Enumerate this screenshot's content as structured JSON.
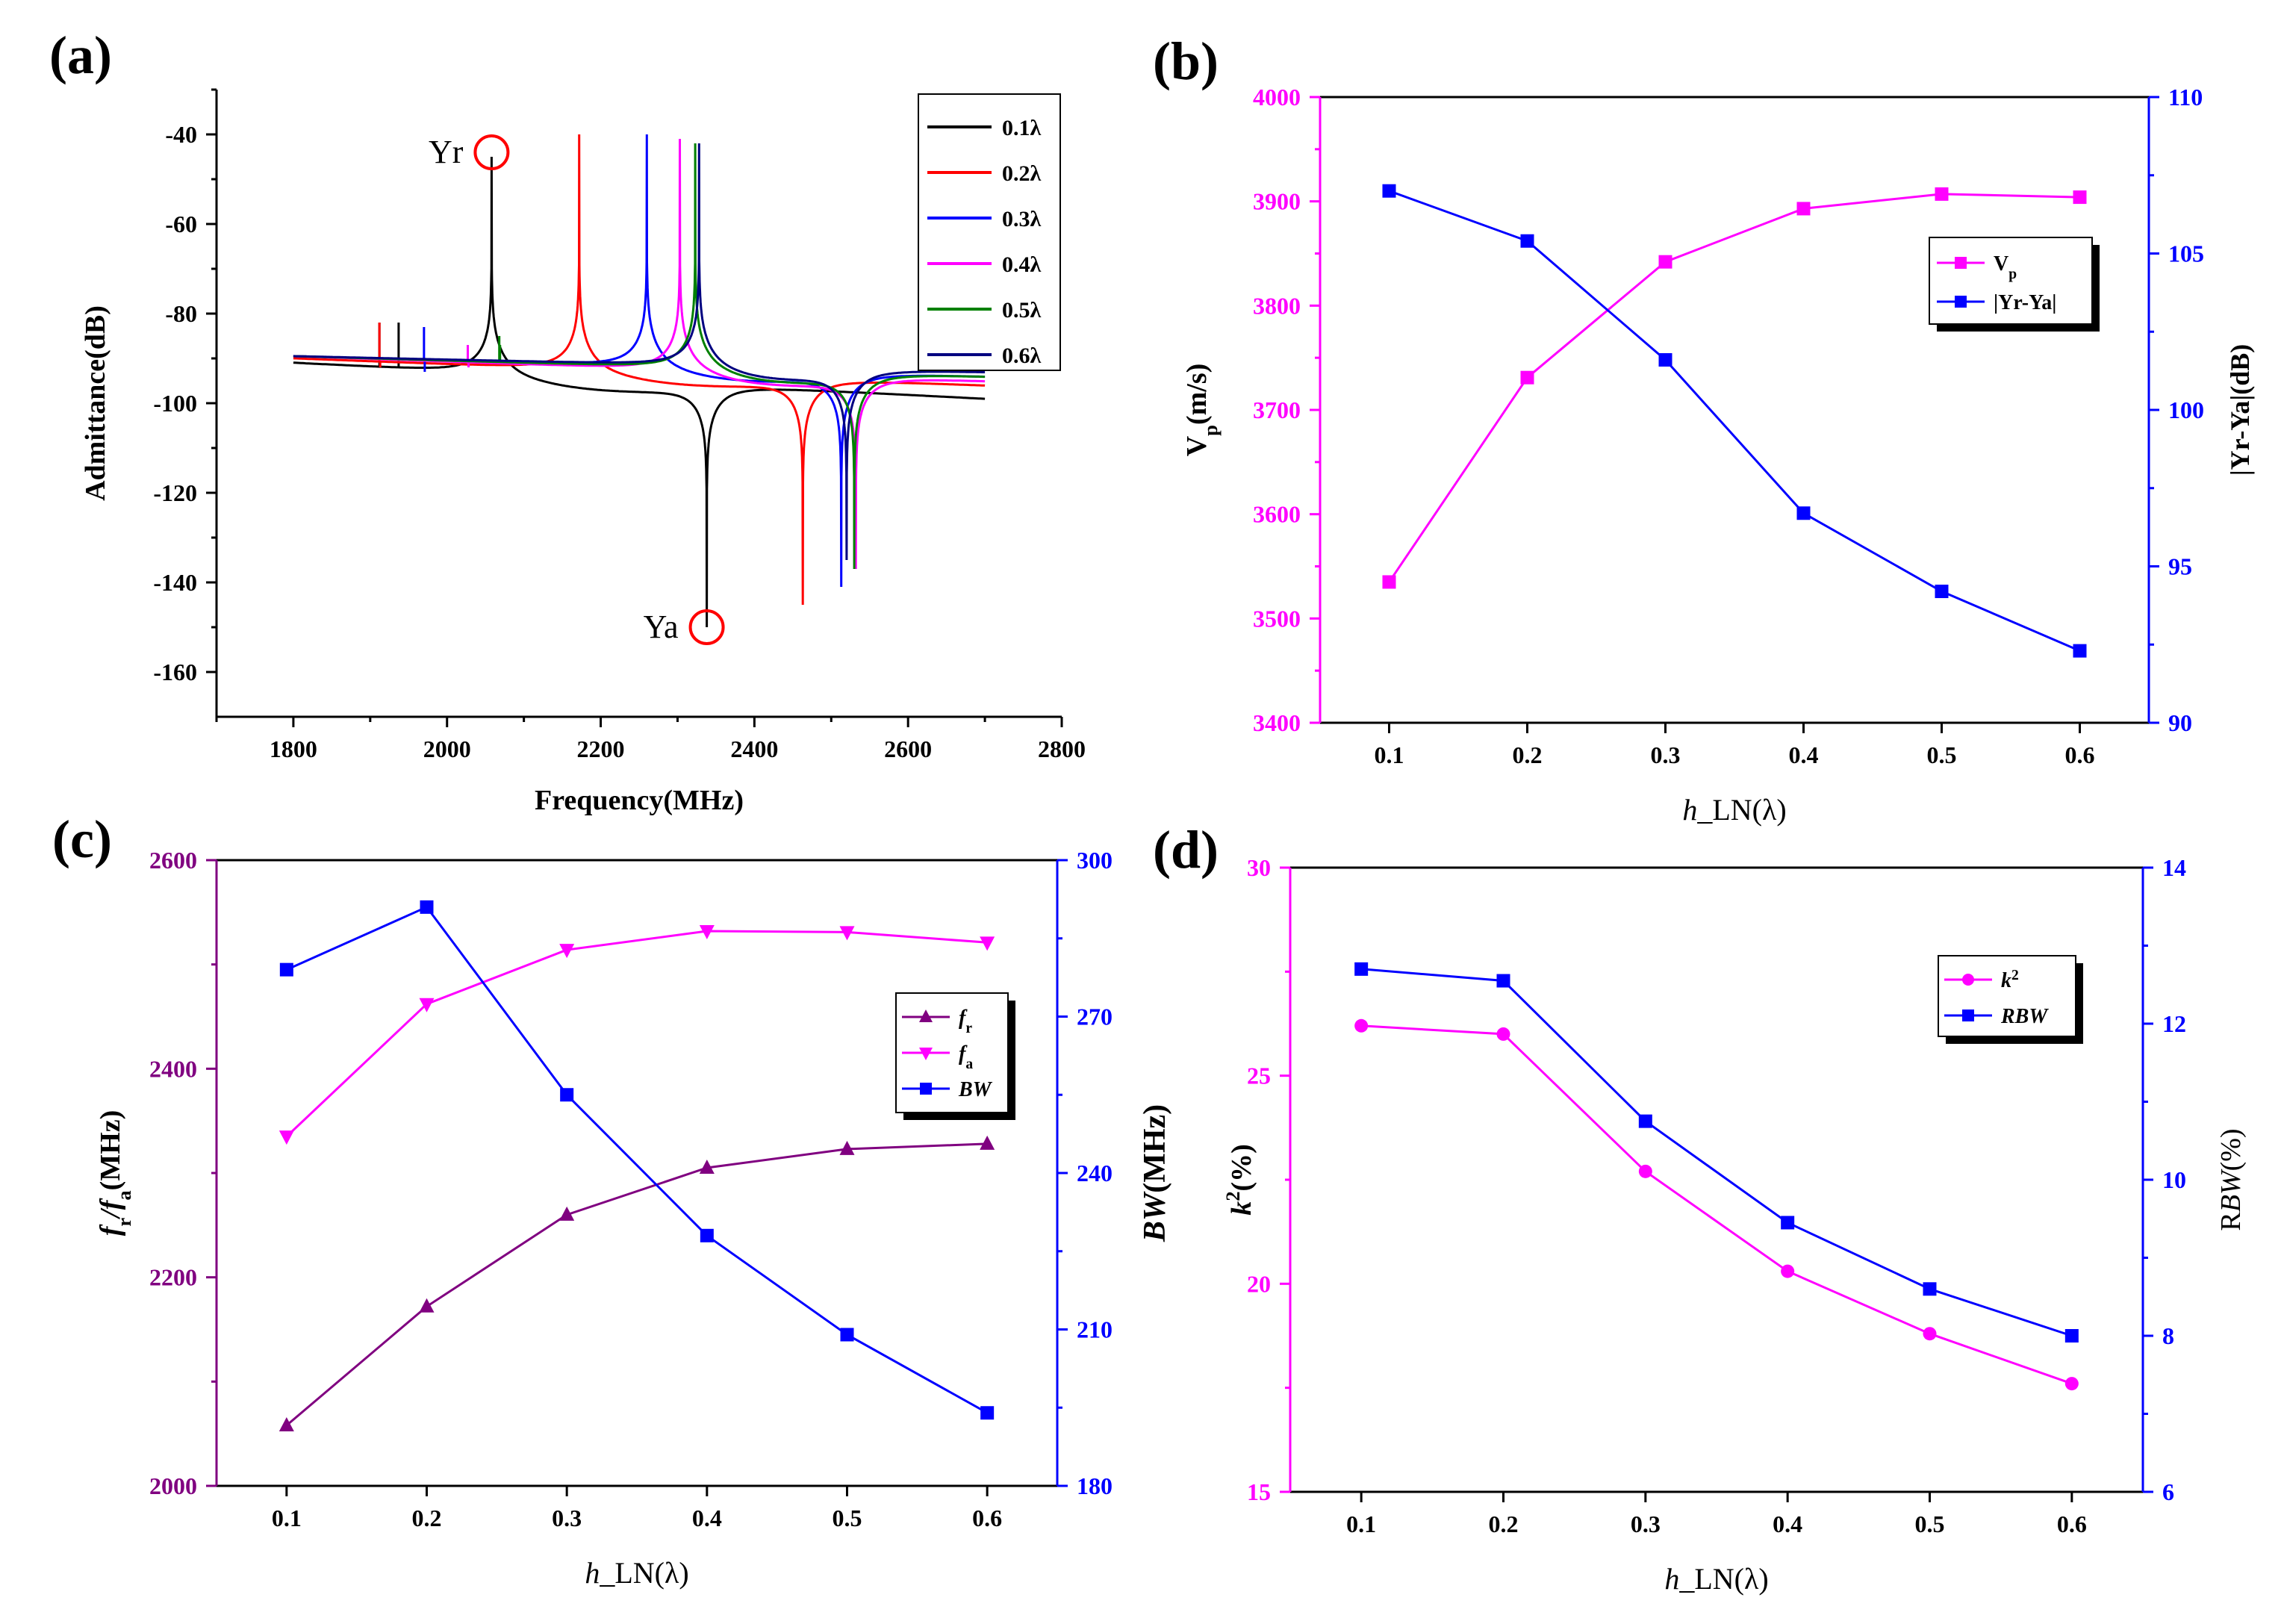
{
  "figure": {
    "panels": [
      "(a)",
      "(b)",
      "(c)",
      "(d)"
    ]
  },
  "chart_data": [
    {
      "panel": "(a)",
      "type": "line",
      "xlabel": "Frequency(MHz)",
      "ylabel": "Admittance(dB)",
      "xlim": [
        1700,
        2800
      ],
      "ylim": [
        -170,
        -30
      ],
      "xticks": [
        1800,
        2000,
        2200,
        2400,
        2600,
        2800
      ],
      "yticks": [
        -160,
        -140,
        -120,
        -100,
        -80,
        -60,
        -40
      ],
      "legend_position": "top-right",
      "annotations": [
        {
          "text": "Yr",
          "x": 2058,
          "y": -44
        },
        {
          "text": "Ya",
          "x": 2338,
          "y": -150
        }
      ],
      "series": [
        {
          "name": "0.1λ",
          "color": "#000000",
          "fr": 2058,
          "fa": 2338,
          "ymax": -45,
          "ymin": -150,
          "spurs": [
            [
              1912,
              -82
            ],
            [
              1937,
              -82
            ]
          ],
          "y_start": -91,
          "y_end": -99
        },
        {
          "name": "0.2λ",
          "color": "#ff0000",
          "fr": 2172,
          "fa": 2463,
          "ymax": -40,
          "ymin": -145,
          "spurs": [
            [
              1912,
              -82
            ],
            [
              1913,
              -92
            ]
          ],
          "y_start": -90,
          "y_end": -96
        },
        {
          "name": "0.3λ",
          "color": "#0000ff",
          "fr": 2260,
          "fa": 2513,
          "ymax": -40,
          "ymin": -141,
          "spurs": [
            [
              1970,
              -83
            ],
            [
              1971,
              -93
            ]
          ],
          "y_start": -89.5,
          "y_end": -94
        },
        {
          "name": "0.4λ",
          "color": "#ff00ff",
          "fr": 2303,
          "fa": 2532,
          "ymax": -41,
          "ymin": -137,
          "spurs": [
            [
              2027,
              -87
            ],
            [
              2028,
              -92
            ]
          ],
          "y_start": -89.5,
          "y_end": -95
        },
        {
          "name": "0.5λ",
          "color": "#008000",
          "fr": 2323,
          "fa": 2530,
          "ymax": -42,
          "ymin": -137,
          "spurs": [
            [
              2068,
              -85
            ],
            [
              2069,
              -87
            ]
          ],
          "y_start": -89.5,
          "y_end": -94
        },
        {
          "name": "0.6λ",
          "color": "#000080",
          "fr": 2328,
          "fa": 2520,
          "ymax": -42,
          "ymin": -135,
          "spurs": [],
          "y_start": -89.5,
          "y_end": -93
        }
      ]
    },
    {
      "panel": "(b)",
      "type": "line",
      "xlabel": "h_LN(λ)",
      "ylabel": "Vp(m/s)",
      "y2label": "|Yr-Ya|(dB)",
      "x": [
        0.1,
        0.2,
        0.3,
        0.4,
        0.5,
        0.6
      ],
      "xlim": [
        0.05,
        0.65
      ],
      "ylim": [
        3400,
        4000
      ],
      "y2lim": [
        90,
        110
      ],
      "xticks": [
        0.1,
        0.2,
        0.3,
        0.4,
        0.5,
        0.6
      ],
      "yticks": [
        3400,
        3500,
        3600,
        3700,
        3800,
        3900,
        4000
      ],
      "y2ticks": [
        90,
        95,
        100,
        105,
        110
      ],
      "legend_position": "upper-right",
      "series": [
        {
          "name": "Vp",
          "axis": "left",
          "color": "#ff00ff",
          "marker": "square",
          "values": [
            3535,
            3731,
            3842,
            3893,
            3907,
            3904
          ]
        },
        {
          "name": "|Yr-Ya|",
          "axis": "right",
          "color": "#0000ff",
          "marker": "square",
          "values": [
            107.0,
            105.4,
            101.6,
            96.7,
            94.2,
            92.3
          ]
        }
      ]
    },
    {
      "panel": "(c)",
      "type": "line",
      "xlabel": "h_LN(λ)",
      "ylabel": "fr/fa(MHz)",
      "y2label": "BW(MHz)",
      "x": [
        0.1,
        0.2,
        0.3,
        0.4,
        0.5,
        0.6
      ],
      "xlim": [
        0.05,
        0.65
      ],
      "ylim": [
        2000,
        2600
      ],
      "y2lim": [
        180,
        300
      ],
      "xticks": [
        0.1,
        0.2,
        0.3,
        0.4,
        0.5,
        0.6
      ],
      "yticks": [
        2000,
        2200,
        2400,
        2600
      ],
      "y2ticks": [
        180,
        210,
        240,
        270,
        300
      ],
      "legend_position": "upper-right",
      "series": [
        {
          "name": "fr",
          "axis": "left",
          "color": "#800080",
          "marker": "triangle-up",
          "values": [
            2058,
            2172,
            2260,
            2305,
            2323,
            2328
          ]
        },
        {
          "name": "fa",
          "axis": "left",
          "color": "#ff00ff",
          "marker": "triangle-down",
          "values": [
            2335,
            2462,
            2514,
            2532,
            2531,
            2521
          ]
        },
        {
          "name": "BW",
          "axis": "right",
          "color": "#0000ff",
          "marker": "square",
          "values": [
            279,
            291,
            255,
            228,
            209,
            194
          ]
        }
      ]
    },
    {
      "panel": "(d)",
      "type": "line",
      "xlabel": "h_LN(λ)",
      "ylabel": "k2(%)",
      "y2label": "RBW(%)",
      "x": [
        0.1,
        0.2,
        0.3,
        0.4,
        0.5,
        0.6
      ],
      "xlim": [
        0.05,
        0.65
      ],
      "ylim": [
        15,
        30
      ],
      "y2lim": [
        6,
        14
      ],
      "xticks": [
        0.1,
        0.2,
        0.3,
        0.4,
        0.5,
        0.6
      ],
      "yticks": [
        15,
        20,
        25,
        30
      ],
      "y2ticks": [
        6,
        8,
        10,
        12,
        14
      ],
      "legend_position": "upper-right",
      "series": [
        {
          "name": "k2",
          "axis": "left",
          "color": "#ff00ff",
          "marker": "circle",
          "values": [
            26.2,
            26.0,
            22.7,
            20.3,
            18.8,
            17.6
          ]
        },
        {
          "name": "RBW",
          "axis": "right",
          "color": "#0000ff",
          "marker": "square",
          "values": [
            12.7,
            12.55,
            10.75,
            9.45,
            8.6,
            8.0
          ]
        }
      ]
    }
  ]
}
